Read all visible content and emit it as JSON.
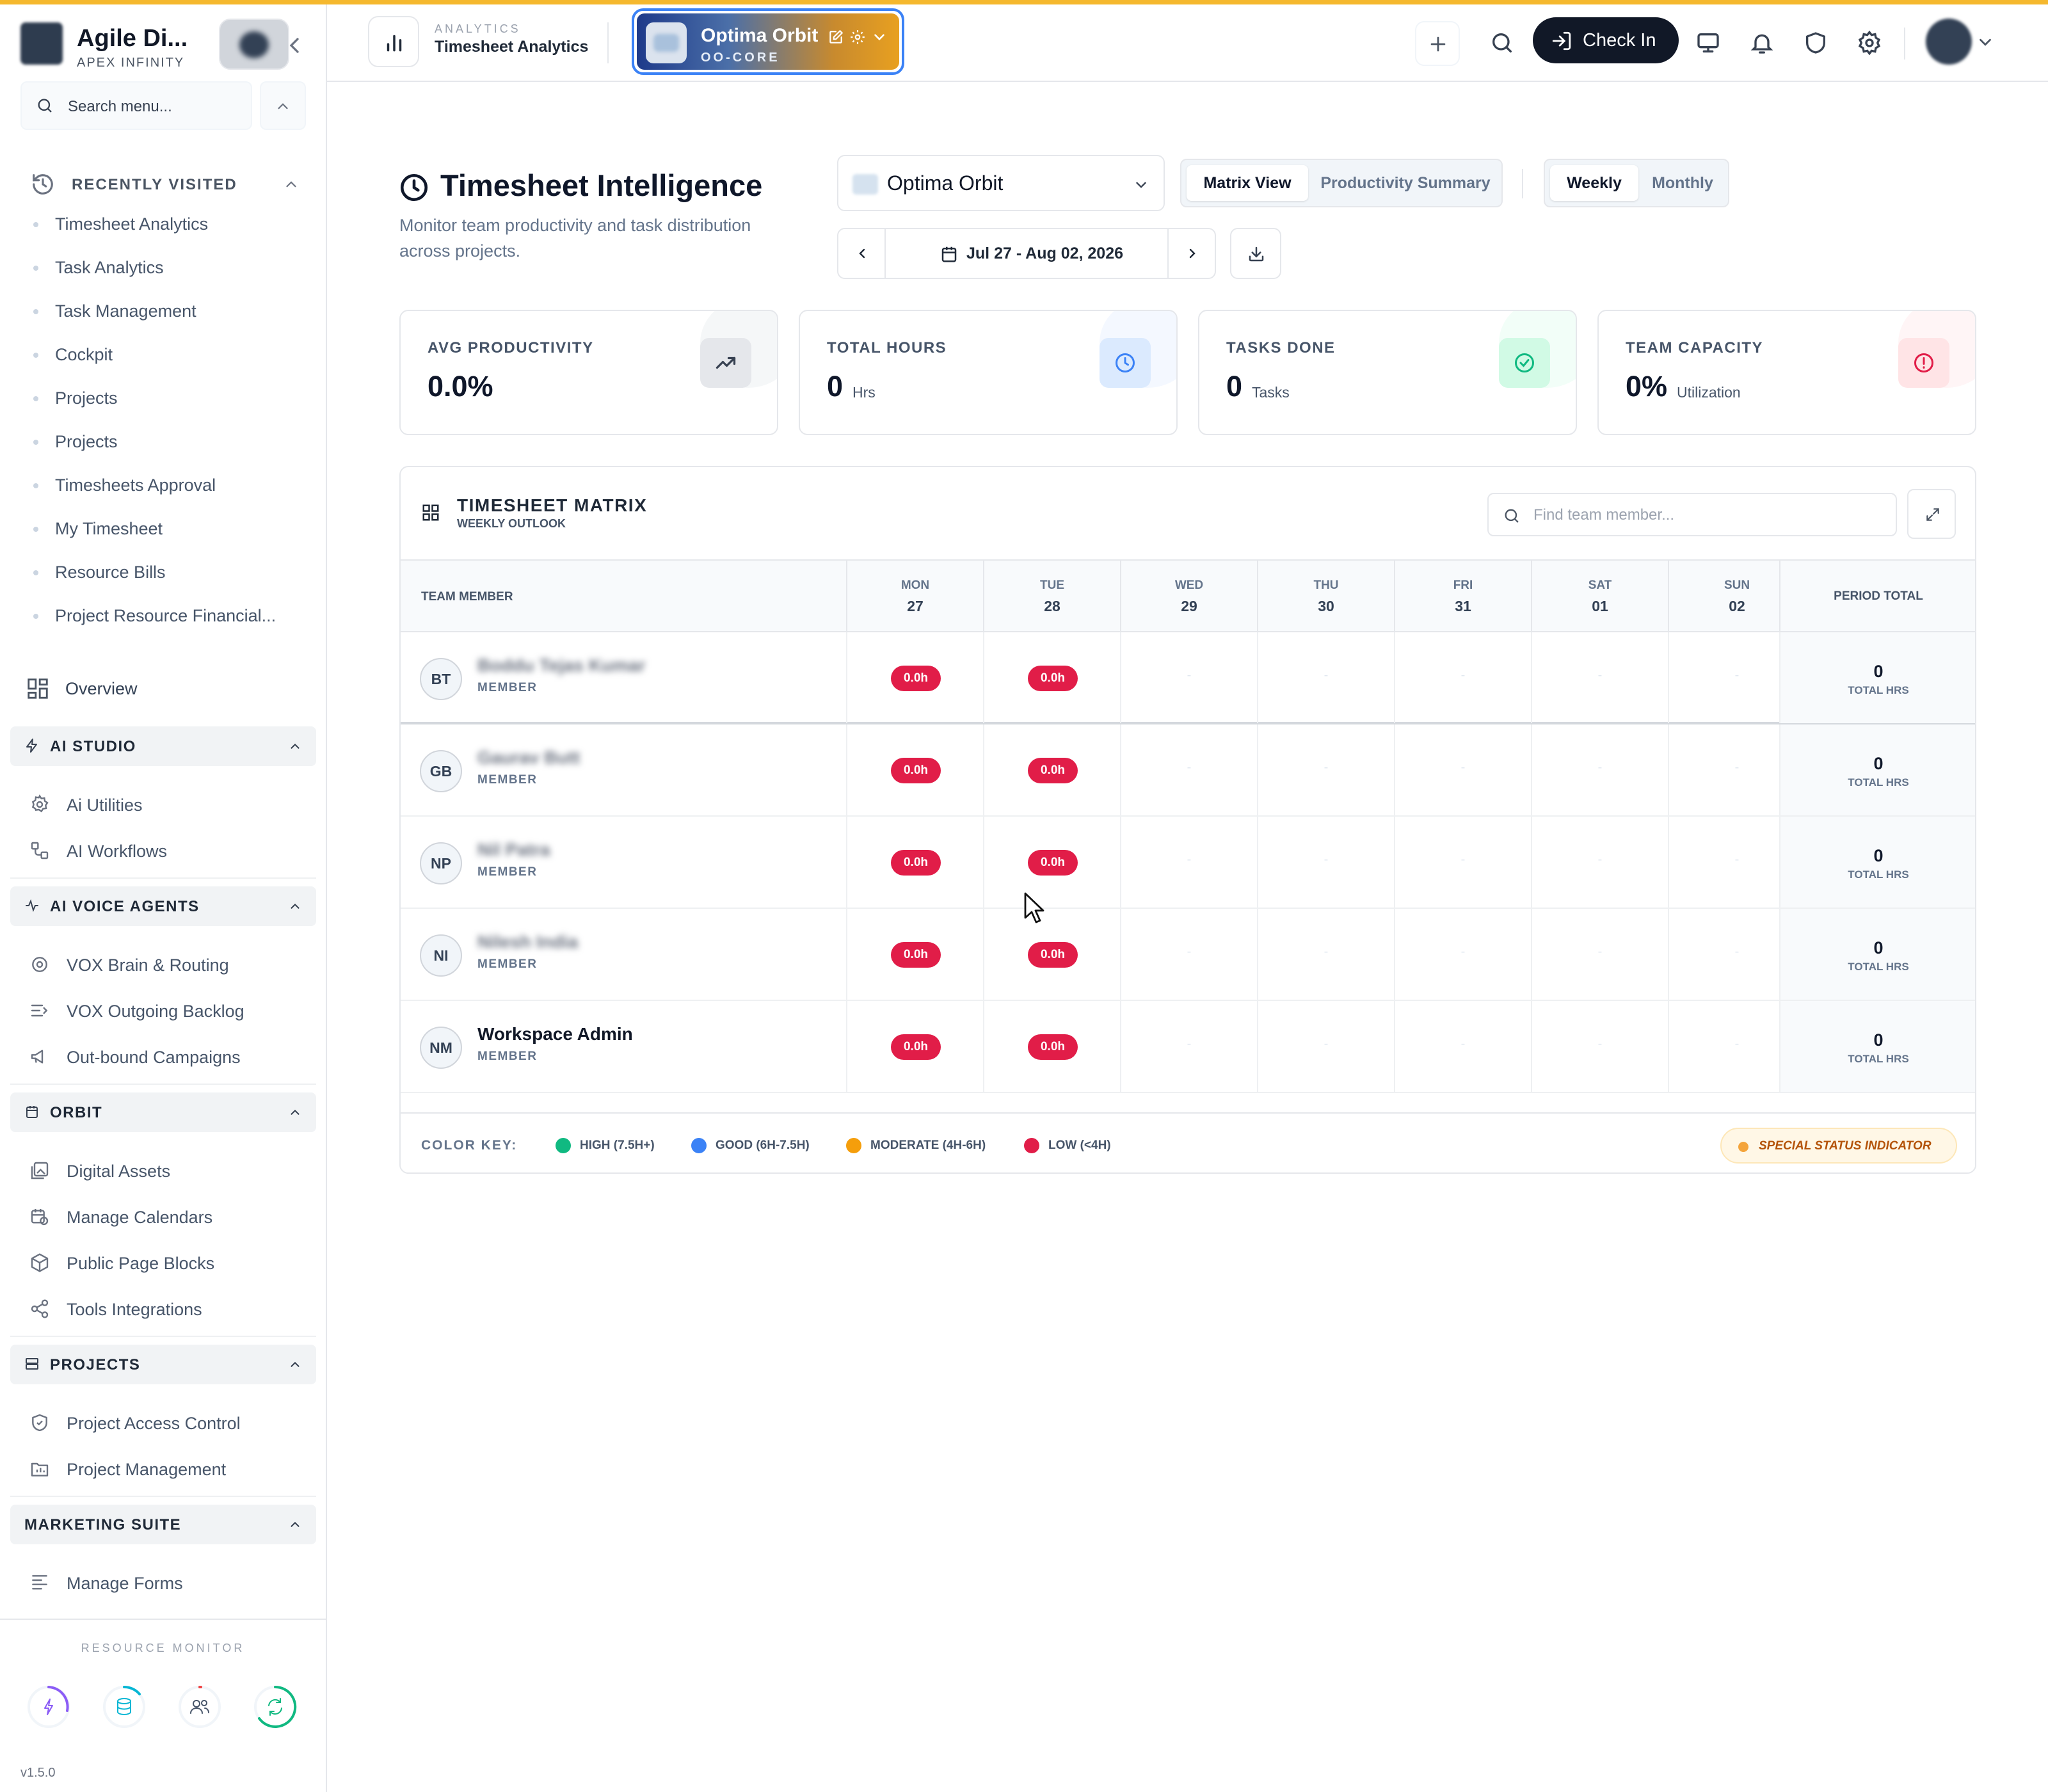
{
  "app": {
    "brand_name": "Agile Di...",
    "brand_sub": "APEX INFINITY",
    "version": "v1.5.0"
  },
  "sidebar": {
    "search_placeholder": "Search menu...",
    "recent": {
      "title": "RECENTLY VISITED",
      "items": [
        "Timesheet Analytics",
        "Task Analytics",
        "Task Management",
        "Cockpit",
        "Projects",
        "Projects",
        "Timesheets Approval",
        "My Timesheet",
        "Resource Bills",
        "Project Resource Financial..."
      ]
    },
    "overview_label": "Overview",
    "sections": [
      {
        "title": "AI STUDIO",
        "items": [
          "Ai Utilities",
          "AI Workflows"
        ]
      },
      {
        "title": "AI VOICE AGENTS",
        "items": [
          "VOX Brain & Routing",
          "VOX Outgoing Backlog",
          "Out-bound Campaigns"
        ]
      },
      {
        "title": "ORBIT",
        "items": [
          "Digital Assets",
          "Manage Calendars",
          "Public Page Blocks",
          "Tools Integrations"
        ]
      },
      {
        "title": "PROJECTS",
        "items": [
          "Project Access Control",
          "Project Management"
        ]
      },
      {
        "title": "MARKETING SUITE",
        "items": [
          "Manage Forms"
        ]
      }
    ],
    "resource_monitor": {
      "title": "RESOURCE MONITOR",
      "gauges": [
        {
          "icon": "bolt-icon",
          "color": "#8b5cf6"
        },
        {
          "icon": "database-icon",
          "color": "#06b6d4"
        },
        {
          "icon": "users-icon",
          "color": "#ef4444"
        },
        {
          "icon": "refresh-icon",
          "color": "#10b981"
        }
      ]
    }
  },
  "topbar": {
    "kicker": "ANALYTICS",
    "title": "Timesheet Analytics",
    "project_name": "Optima Orbit",
    "project_code": "OO-CORE",
    "checkin_label": "Check In"
  },
  "main": {
    "title": "Timesheet Intelligence",
    "subtitle": "Monitor team productivity and task distribution across projects.",
    "workspace_select": "Optima Orbit",
    "view_tabs": [
      "Matrix View",
      "Productivity Summary"
    ],
    "period_tabs": [
      "Weekly",
      "Monthly"
    ],
    "date_range": "Jul 27 - Aug 02, 2026",
    "kpis": [
      {
        "label": "AVG PRODUCTIVITY",
        "value": "0.0%",
        "unit": "",
        "icon": "trending-up-icon",
        "color": "#374151"
      },
      {
        "label": "TOTAL HOURS",
        "value": "0",
        "unit": "Hrs",
        "icon": "clock-icon",
        "color": "#3b82f6"
      },
      {
        "label": "TASKS DONE",
        "value": "0",
        "unit": "Tasks",
        "icon": "check-circle-icon",
        "color": "#10b981"
      },
      {
        "label": "TEAM CAPACITY",
        "value": "0%",
        "unit": "Utilization",
        "icon": "alert-circle-icon",
        "color": "#e11d48"
      }
    ],
    "matrix": {
      "title": "TIMESHEET MATRIX",
      "subtitle": "WEEKLY OUTLOOK",
      "search_placeholder": "Find team member...",
      "header_member": "TEAM MEMBER",
      "header_total": "PERIOD TOTAL",
      "days": [
        {
          "dow": "MON",
          "date": "27"
        },
        {
          "dow": "TUE",
          "date": "28"
        },
        {
          "dow": "WED",
          "date": "29"
        },
        {
          "dow": "THU",
          "date": "30"
        },
        {
          "dow": "FRI",
          "date": "31"
        },
        {
          "dow": "SAT",
          "date": "01"
        },
        {
          "dow": "SUN",
          "date": "02"
        }
      ],
      "rows": [
        {
          "initials": "BT",
          "name": "Boddu Tejas Kumar",
          "blurred": true,
          "role": "MEMBER",
          "cells": [
            "0.0h",
            "0.0h",
            "",
            "",
            "",
            "",
            ""
          ],
          "total": "0",
          "total_label": "TOTAL HRS"
        },
        {
          "initials": "GB",
          "name": "Gaurav Butt",
          "blurred": true,
          "role": "MEMBER",
          "cells": [
            "0.0h",
            "0.0h",
            "",
            "",
            "",
            "",
            ""
          ],
          "total": "0",
          "total_label": "TOTAL HRS"
        },
        {
          "initials": "NP",
          "name": "Nil Patra",
          "blurred": true,
          "role": "MEMBER",
          "cells": [
            "0.0h",
            "0.0h",
            "",
            "",
            "",
            "",
            ""
          ],
          "total": "0",
          "total_label": "TOTAL HRS"
        },
        {
          "initials": "NI",
          "name": "Nilesh India",
          "blurred": true,
          "role": "MEMBER",
          "cells": [
            "0.0h",
            "0.0h",
            "",
            "",
            "",
            "",
            ""
          ],
          "total": "0",
          "total_label": "TOTAL HRS"
        },
        {
          "initials": "NM",
          "name": "Workspace Admin",
          "blurred": false,
          "role": "MEMBER",
          "cells": [
            "0.0h",
            "0.0h",
            "",
            "",
            "",
            "",
            ""
          ],
          "total": "0",
          "total_label": "TOTAL HRS"
        }
      ],
      "legend": {
        "key_label": "COLOR KEY:",
        "items": [
          {
            "label": "HIGH (7.5H+)",
            "color": "#10b981"
          },
          {
            "label": "GOOD (6H-7.5H)",
            "color": "#3b82f6"
          },
          {
            "label": "MODERATE (4H-6H)",
            "color": "#f59e0b"
          },
          {
            "label": "LOW (<4H)",
            "color": "#e11d48"
          }
        ],
        "special": "SPECIAL STATUS INDICATOR"
      }
    }
  }
}
